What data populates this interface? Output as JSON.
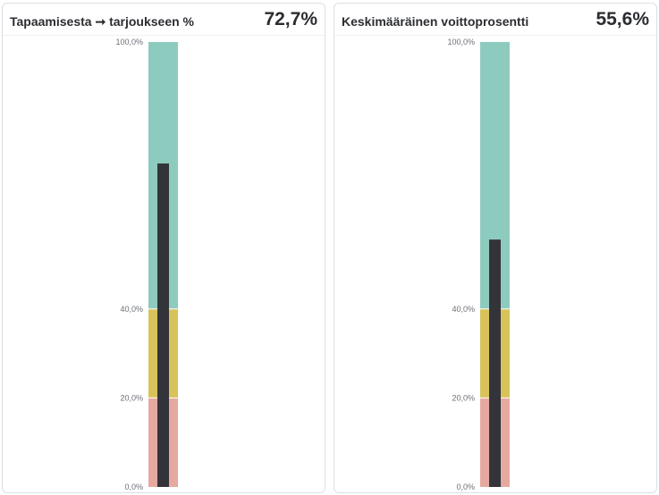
{
  "cards": [
    {
      "title": "Tapaamisesta ➞ tarjoukseen %",
      "value_label": "72,7%",
      "chart_data": {
        "type": "bar",
        "subtype": "bullet",
        "value": 72.7,
        "ranges": [
          {
            "from": 0,
            "to": 20,
            "color": "#e6a99f"
          },
          {
            "from": 20,
            "to": 40,
            "color": "#d8c35a"
          },
          {
            "from": 40,
            "to": 100,
            "color": "#8ecbbf"
          }
        ],
        "bar_color": "#33343a",
        "ylim": [
          0,
          100
        ],
        "ticks": [
          {
            "value": 100,
            "label": "100,0%"
          },
          {
            "value": 40,
            "label": "40,0%"
          },
          {
            "value": 20,
            "label": "20,0%"
          },
          {
            "value": 0,
            "label": "0,0%"
          }
        ]
      }
    },
    {
      "title": "Keskimääräinen voittoprosentti",
      "value_label": "55,6%",
      "chart_data": {
        "type": "bar",
        "subtype": "bullet",
        "value": 55.6,
        "ranges": [
          {
            "from": 0,
            "to": 20,
            "color": "#e6a99f"
          },
          {
            "from": 20,
            "to": 40,
            "color": "#d8c35a"
          },
          {
            "from": 40,
            "to": 100,
            "color": "#8ecbbf"
          }
        ],
        "bar_color": "#33343a",
        "ylim": [
          0,
          100
        ],
        "ticks": [
          {
            "value": 100,
            "label": "100,0%"
          },
          {
            "value": 40,
            "label": "40,0%"
          },
          {
            "value": 20,
            "label": "20,0%"
          },
          {
            "value": 0,
            "label": "0,0%"
          }
        ]
      }
    }
  ]
}
